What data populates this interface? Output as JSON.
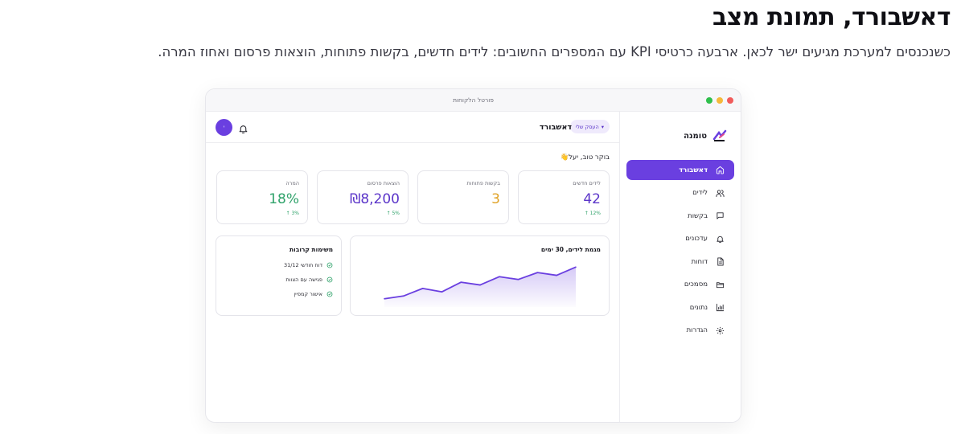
{
  "headline": "דאשבורד, תמונת מצב",
  "subline": "כשנכנסים למערכת מגיעים ישר לכאן. ארבעה כרטיסי KPI עם המספרים החשובים: לידים חדשים, בקשות פתוחות, הוצאות פרסום ואחוז המרה.",
  "window": {
    "title": "פורטל הלקוחות"
  },
  "sidebar": {
    "brand": "טומנה",
    "items": [
      {
        "label": "דאשבורד",
        "icon": "home-icon",
        "active": true
      },
      {
        "label": "לידים",
        "icon": "users-icon",
        "active": false
      },
      {
        "label": "בקשות",
        "icon": "message-icon",
        "active": false
      },
      {
        "label": "עדכונים",
        "icon": "bell-icon",
        "active": false
      },
      {
        "label": "דוחות",
        "icon": "file-icon",
        "active": false
      },
      {
        "label": "מסמכים",
        "icon": "folder-icon",
        "active": false
      },
      {
        "label": "נתונים",
        "icon": "bar-chart-icon",
        "active": false
      },
      {
        "label": "הגדרות",
        "icon": "gear-icon",
        "active": false
      }
    ]
  },
  "topbar": {
    "title": "דאשבורד",
    "business_pill": "העסק שלי",
    "avatar_initial": "י"
  },
  "greeting": "בוקר טוב, יעל👋",
  "kpis": [
    {
      "label": "לידים חדשים",
      "value": "42",
      "trend": "↑ 12%",
      "color": "#5b35c9"
    },
    {
      "label": "בקשות פתוחות",
      "value": "3",
      "trend": "",
      "color": "#e0a225"
    },
    {
      "label": "הוצאות פרסום",
      "value": "₪8,200",
      "trend": "↑ 5%",
      "color": "#5b35c9"
    },
    {
      "label": "המרה",
      "value": "18%",
      "trend": "↑ 3%",
      "color": "#2fa26a"
    }
  ],
  "chart_panel": {
    "title": "מגמת לידים, 30 ימים"
  },
  "chart_data": {
    "type": "area",
    "title": "מגמת לידים, 30 ימים",
    "values": [
      12,
      16,
      27,
      22,
      36,
      32,
      44,
      40,
      50,
      46,
      58
    ],
    "ylim": [
      0,
      70
    ],
    "color": "#6a3fe0",
    "grid": false
  },
  "tasks_panel": {
    "title": "משימות קרובות",
    "items": [
      "דוח חודשי 31/12",
      "פגישה עם הצוות",
      "אישור קמפיין"
    ]
  },
  "colors": {
    "accent": "#6a3fe0",
    "success": "#2fa26a",
    "warning": "#e0a225"
  }
}
